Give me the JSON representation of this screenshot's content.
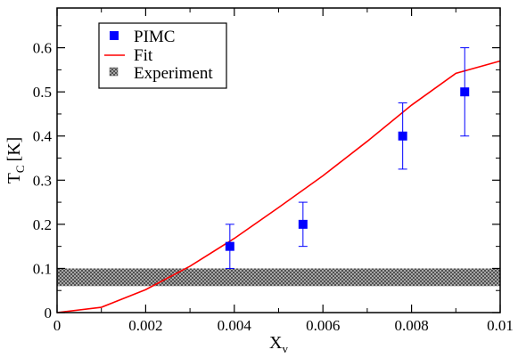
{
  "chart_data": {
    "type": "scatter",
    "xlabel": "X",
    "xlabel_sub": "v",
    "ylabel": "T",
    "ylabel_sub": "C",
    "ylabel_unit": "[K]",
    "xlim": [
      0,
      0.01
    ],
    "ylim": [
      0,
      0.69
    ],
    "x_ticks": [
      0,
      0.002,
      0.004,
      0.006,
      0.008,
      0.01
    ],
    "x_tick_labels": [
      "0",
      "0.002",
      "0.004",
      "0.006",
      "0.008",
      "0.01"
    ],
    "y_ticks": [
      0,
      0.1,
      0.2,
      0.3,
      0.4,
      0.5,
      0.6
    ],
    "y_tick_labels": [
      "0",
      "0.1",
      "0.2",
      "0.3",
      "0.4",
      "0.5",
      "0.6"
    ],
    "grid": false,
    "legend_position": "top-left",
    "legend": [
      {
        "key": "pimc",
        "label": "PIMC"
      },
      {
        "key": "fit",
        "label": "Fit"
      },
      {
        "key": "experiment",
        "label": "Experiment"
      }
    ],
    "pimc": {
      "name": "PIMC",
      "color": "#0000ff",
      "points": [
        {
          "x": 0.0039,
          "y": 0.15,
          "err_low": 0.1,
          "err_high": 0.2
        },
        {
          "x": 0.00555,
          "y": 0.2,
          "err_low": 0.15,
          "err_high": 0.25
        },
        {
          "x": 0.0078,
          "y": 0.4,
          "err_low": 0.325,
          "err_high": 0.475
        },
        {
          "x": 0.0092,
          "y": 0.5,
          "err_low": 0.4,
          "err_high": 0.6
        }
      ]
    },
    "fit": {
      "name": "Fit",
      "color": "#ff0000",
      "points": [
        {
          "x": 0.0,
          "y": 0.0
        },
        {
          "x": 0.001,
          "y": 0.012
        },
        {
          "x": 0.002,
          "y": 0.052
        },
        {
          "x": 0.003,
          "y": 0.105
        },
        {
          "x": 0.004,
          "y": 0.168
        },
        {
          "x": 0.005,
          "y": 0.238
        },
        {
          "x": 0.006,
          "y": 0.31
        },
        {
          "x": 0.007,
          "y": 0.388
        },
        {
          "x": 0.008,
          "y": 0.47
        },
        {
          "x": 0.009,
          "y": 0.542
        },
        {
          "x": 0.01,
          "y": 0.57
        }
      ]
    },
    "experiment": {
      "name": "Experiment",
      "y_low": 0.06,
      "y_high": 0.1,
      "color": "#888888"
    }
  }
}
